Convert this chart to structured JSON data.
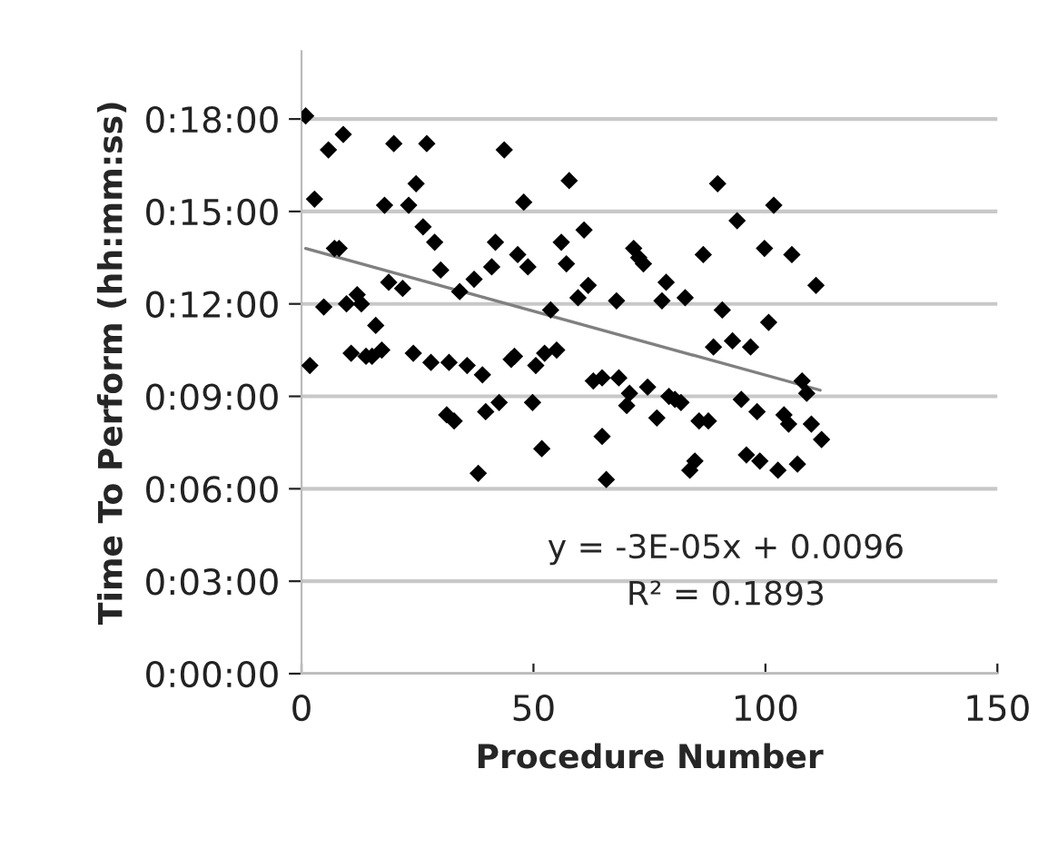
{
  "chart_data": {
    "type": "scatter",
    "xlabel": "Procedure Number",
    "ylabel": "Time To Perform (hh:mm:ss)",
    "annotations": [
      "y = -3E-05x + 0.0096",
      "R² = 0.1893"
    ],
    "xlim": [
      0,
      150
    ],
    "xticks": [
      0,
      50,
      100,
      150
    ],
    "ylim": [
      0,
      20.2
    ],
    "yticks": [
      {
        "value": 0,
        "label": "0:00:00"
      },
      {
        "value": 3,
        "label": "0:03:00"
      },
      {
        "value": 6,
        "label": "0:06:00"
      },
      {
        "value": 9,
        "label": "0:09:00"
      },
      {
        "value": 12,
        "label": "0:12:00"
      },
      {
        "value": 15,
        "label": "0:15:00"
      },
      {
        "value": 18,
        "label": "0:18:00"
      }
    ],
    "grid": "y",
    "marker": "diamond",
    "series": [
      {
        "color": "#000000",
        "x": [
          0.9,
          2.8,
          5.8,
          9.0,
          7.1,
          8.1,
          4.8,
          1.8,
          9.7,
          12.0,
          12.9,
          16.0,
          10.7,
          13.9,
          15.2,
          17.3,
          19.9,
          17.9,
          23.1,
          27.0,
          24.7,
          26.2,
          28.7,
          30.0,
          18.8,
          21.8,
          24.1,
          27.9,
          31.8,
          35.7,
          39.0,
          34.1,
          37.2,
          41.0,
          41.8,
          43.7,
          46.6,
          48.8,
          47.9,
          53.7,
          45.2,
          45.9,
          50.5,
          52.4,
          55.0,
          56.0,
          57.1,
          57.7,
          60.9,
          59.6,
          61.8,
          67.9,
          71.6,
          72.7,
          73.7,
          78.6,
          77.7,
          31.3,
          32.9,
          39.7,
          42.6,
          49.8,
          62.9,
          64.8,
          68.4,
          70.7,
          74.6,
          70.1,
          76.6,
          79.2,
          38.1,
          51.8,
          64.8,
          65.7,
          83.7,
          84.8,
          80.5,
          81.8,
          85.7,
          87.7,
          94.8,
          98.2,
          95.9,
          98.8,
          102.7,
          106.9,
          104.0,
          105.0,
          109.9,
          112.1,
          107.9,
          108.9,
          88.8,
          92.9,
          96.8,
          89.7,
          101.8,
          93.9,
          86.6,
          99.8,
          105.7,
          110.9,
          82.7,
          90.7,
          100.7
        ],
        "values": [
          18.1,
          15.4,
          17.0,
          17.5,
          13.8,
          13.8,
          11.9,
          10.0,
          12.0,
          12.3,
          12.0,
          11.3,
          10.4,
          10.3,
          10.3,
          10.5,
          17.2,
          15.2,
          15.2,
          17.2,
          15.9,
          14.5,
          14.0,
          13.1,
          12.7,
          12.5,
          10.4,
          10.1,
          10.1,
          10.0,
          9.7,
          12.4,
          12.8,
          13.2,
          14.0,
          17.0,
          13.6,
          13.2,
          15.3,
          11.8,
          10.2,
          10.3,
          10.0,
          10.4,
          10.5,
          14.0,
          13.3,
          16.0,
          14.4,
          12.2,
          12.6,
          12.1,
          13.8,
          13.5,
          13.3,
          12.7,
          12.1,
          8.4,
          8.2,
          8.5,
          8.8,
          8.8,
          9.5,
          9.6,
          9.6,
          9.1,
          9.3,
          8.7,
          8.3,
          9.0,
          6.5,
          7.3,
          7.7,
          6.3,
          6.6,
          6.9,
          8.9,
          8.8,
          8.2,
          8.2,
          8.9,
          8.5,
          7.1,
          6.9,
          6.6,
          6.8,
          8.4,
          8.1,
          8.1,
          7.6,
          9.5,
          9.1,
          10.6,
          10.8,
          10.6,
          15.9,
          15.2,
          14.7,
          13.6,
          13.8,
          13.6,
          12.6,
          12.2,
          11.8,
          11.4
        ]
      },
      {
        "type": "line",
        "color": "#808080",
        "marker": "none",
        "x": [
          0.9,
          111.8
        ],
        "values": [
          13.8,
          9.2
        ]
      }
    ]
  }
}
